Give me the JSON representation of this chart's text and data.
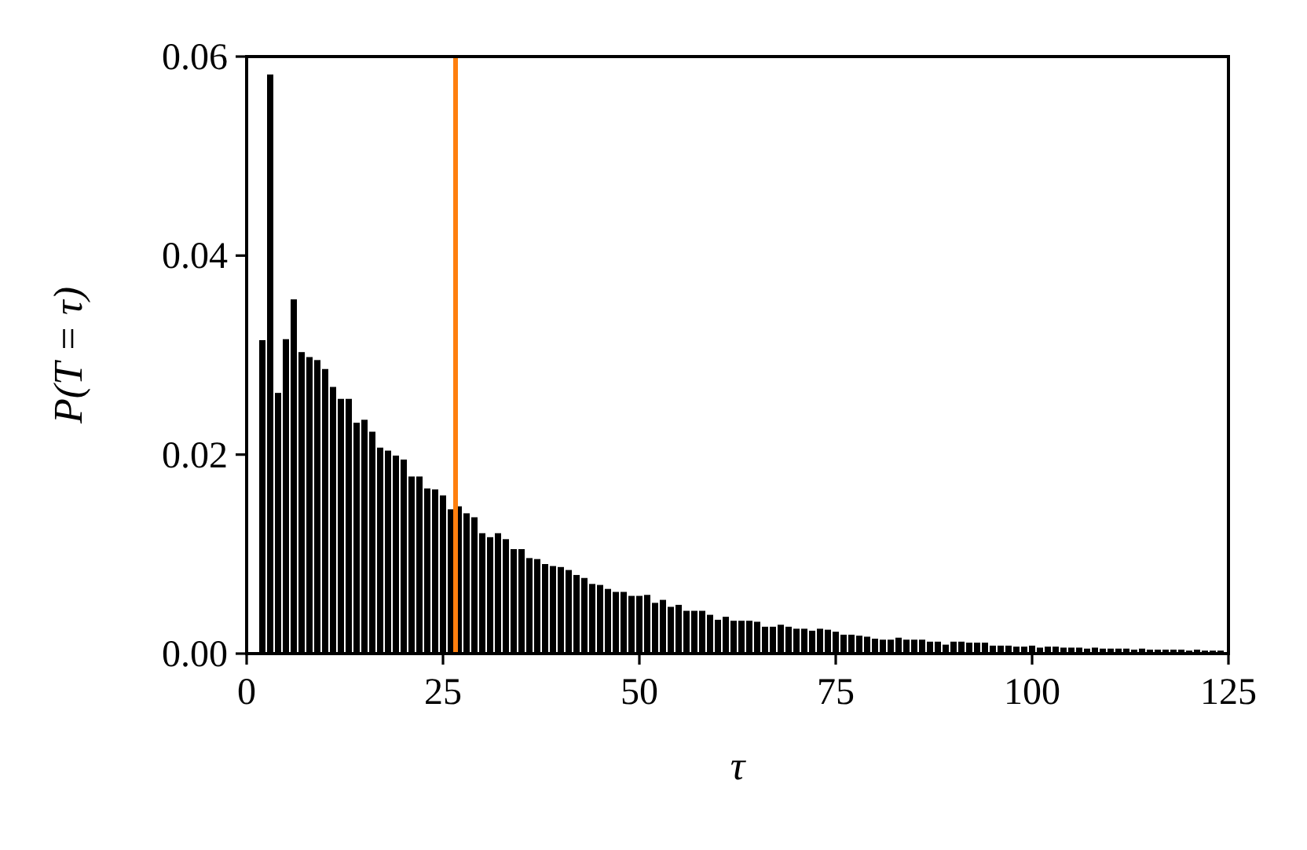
{
  "chart_data": {
    "type": "bar",
    "xlabel": "τ",
    "ylabel": "P(T = τ)",
    "x": [
      2,
      3,
      4,
      5,
      6,
      7,
      8,
      9,
      10,
      11,
      12,
      13,
      14,
      15,
      16,
      17,
      18,
      19,
      20,
      21,
      22,
      23,
      24,
      25,
      26,
      27,
      28,
      29,
      30,
      31,
      32,
      33,
      34,
      35,
      36,
      37,
      38,
      39,
      40,
      41,
      42,
      43,
      44,
      45,
      46,
      47,
      48,
      49,
      50,
      51,
      52,
      53,
      54,
      55,
      56,
      57,
      58,
      59,
      60,
      61,
      62,
      63,
      64,
      65,
      66,
      67,
      68,
      69,
      70,
      71,
      72,
      73,
      74,
      75,
      76,
      77,
      78,
      79,
      80,
      81,
      82,
      83,
      84,
      85,
      86,
      87,
      88,
      89,
      90,
      91,
      92,
      93,
      94,
      95,
      96,
      97,
      98,
      99,
      100,
      101,
      102,
      103,
      104,
      105,
      106,
      107,
      108,
      109,
      110,
      111,
      112,
      113,
      114,
      115,
      116,
      117,
      118,
      119,
      120,
      121,
      122,
      123,
      124
    ],
    "values": [
      0.0315,
      0.0582,
      0.0262,
      0.0316,
      0.0356,
      0.0303,
      0.0298,
      0.0295,
      0.0286,
      0.0268,
      0.0256,
      0.0256,
      0.0232,
      0.0235,
      0.0223,
      0.0207,
      0.0204,
      0.0199,
      0.0195,
      0.0178,
      0.0178,
      0.0166,
      0.0165,
      0.0159,
      0.0145,
      0.0148,
      0.0141,
      0.0137,
      0.0121,
      0.0117,
      0.0121,
      0.0115,
      0.0105,
      0.0105,
      0.0096,
      0.0095,
      0.009,
      0.0088,
      0.0087,
      0.0084,
      0.0079,
      0.0076,
      0.007,
      0.0069,
      0.0065,
      0.0062,
      0.0062,
      0.0058,
      0.0058,
      0.0059,
      0.0051,
      0.0054,
      0.0047,
      0.0049,
      0.0043,
      0.0043,
      0.0043,
      0.0039,
      0.0034,
      0.0037,
      0.0033,
      0.0033,
      0.0033,
      0.0032,
      0.0027,
      0.0027,
      0.0029,
      0.0027,
      0.0025,
      0.0025,
      0.0023,
      0.0025,
      0.0024,
      0.0022,
      0.0019,
      0.0019,
      0.0018,
      0.0017,
      0.0015,
      0.0014,
      0.0014,
      0.0016,
      0.0014,
      0.0014,
      0.0014,
      0.0012,
      0.0012,
      0.0009,
      0.0012,
      0.0012,
      0.0011,
      0.0011,
      0.0011,
      0.0008,
      0.0008,
      0.0008,
      0.0007,
      0.0007,
      0.0008,
      0.0006,
      0.0007,
      0.0007,
      0.0006,
      0.0006,
      0.0006,
      0.0005,
      0.0006,
      0.0005,
      0.0005,
      0.0005,
      0.0005,
      0.0004,
      0.0005,
      0.0004,
      0.0004,
      0.0004,
      0.0004,
      0.0004,
      0.0003,
      0.0004,
      0.0003,
      0.0003,
      0.0003
    ],
    "color": "#000000",
    "xlim": [
      0,
      125
    ],
    "xticks": [
      0,
      25,
      50,
      75,
      100,
      125
    ],
    "ylim": [
      0,
      0.06
    ],
    "yticks": [
      {
        "value": 0,
        "label": "0.00"
      },
      {
        "value": 0.02,
        "label": "0.02"
      },
      {
        "value": 0.04,
        "label": "0.04"
      },
      {
        "value": 0.06,
        "label": "0.06"
      }
    ],
    "ref_lines": [
      {
        "axis": "x",
        "value": 26.6,
        "color": "#ff7f0e"
      }
    ]
  }
}
